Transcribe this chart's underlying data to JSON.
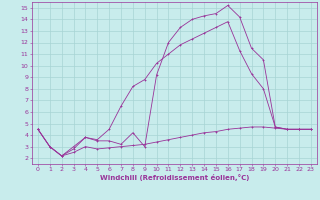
{
  "xlabel": "Windchill (Refroidissement éolien,°C)",
  "background_color": "#c8ecec",
  "grid_color": "#a8d4d4",
  "line_color": "#993399",
  "spine_color": "#993399",
  "xlim": [
    -0.5,
    23.5
  ],
  "ylim": [
    1.5,
    15.5
  ],
  "xticks": [
    0,
    1,
    2,
    3,
    4,
    5,
    6,
    7,
    8,
    9,
    10,
    11,
    12,
    13,
    14,
    15,
    16,
    17,
    18,
    19,
    20,
    21,
    22,
    23
  ],
  "yticks": [
    2,
    3,
    4,
    5,
    6,
    7,
    8,
    9,
    10,
    11,
    12,
    13,
    14,
    15
  ],
  "line1_x": [
    0,
    1,
    2,
    3,
    4,
    5,
    6,
    7,
    8,
    9,
    10,
    11,
    12,
    13,
    14,
    15,
    16,
    17,
    18,
    19,
    20,
    21,
    22,
    23
  ],
  "line1_y": [
    4.5,
    3.0,
    2.2,
    3.0,
    3.8,
    3.5,
    3.5,
    3.2,
    4.2,
    3.0,
    9.2,
    12.0,
    13.3,
    14.0,
    14.3,
    14.5,
    15.2,
    14.2,
    11.5,
    10.5,
    4.7,
    4.5,
    4.5,
    4.5
  ],
  "line2_x": [
    0,
    1,
    2,
    3,
    4,
    5,
    6,
    7,
    8,
    9,
    10,
    11,
    12,
    13,
    14,
    15,
    16,
    17,
    18,
    19,
    20,
    21,
    22,
    23
  ],
  "line2_y": [
    4.5,
    3.0,
    2.2,
    2.8,
    3.8,
    3.6,
    4.5,
    6.5,
    8.2,
    8.8,
    10.2,
    11.0,
    11.8,
    12.3,
    12.8,
    13.3,
    13.8,
    11.3,
    9.3,
    8.0,
    4.7,
    4.5,
    4.5,
    4.5
  ],
  "line3_x": [
    0,
    1,
    2,
    3,
    4,
    5,
    6,
    7,
    8,
    9,
    10,
    11,
    12,
    13,
    14,
    15,
    16,
    17,
    18,
    19,
    20,
    21,
    22,
    23
  ],
  "line3_y": [
    4.5,
    3.0,
    2.2,
    2.5,
    3.0,
    2.8,
    2.9,
    3.0,
    3.1,
    3.2,
    3.4,
    3.6,
    3.8,
    4.0,
    4.2,
    4.3,
    4.5,
    4.6,
    4.7,
    4.7,
    4.6,
    4.5,
    4.5,
    4.5
  ],
  "tick_labelsize": 4.5,
  "xlabel_fontsize": 5.0,
  "lw": 0.6,
  "ms": 1.8
}
